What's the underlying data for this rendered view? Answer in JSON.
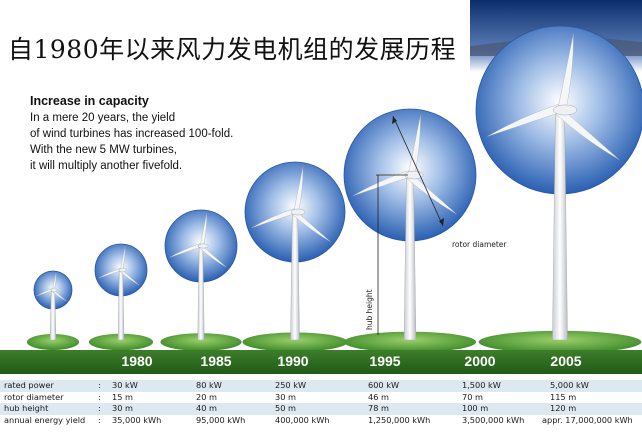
{
  "title": "自1980年以来风力发电机组的发展历程",
  "intro": {
    "heading": "Increase in capacity",
    "lines": [
      "In a mere 20 years, the yield",
      "of wind turbines has increased 100-fold.",
      "With the new 5 MW turbines,",
      "it will multiply another fivefold."
    ]
  },
  "annotations": {
    "rotor_diameter": "rotor diameter",
    "hub_height": "hub height"
  },
  "colors": {
    "rotor_blue": "#2f64b6",
    "ground_green": "#2f6f22",
    "year_bar": "#2a6a1e"
  },
  "years": [
    "1980",
    "1985",
    "1990",
    "1995",
    "2000",
    "2005"
  ],
  "specs": [
    {
      "label": "rated power",
      "values": [
        "30 kW",
        "80 kW",
        "250 kW",
        "600 kW",
        "1,500 kW",
        "5,000 kW"
      ]
    },
    {
      "label": "rotor diameter",
      "values": [
        "15 m",
        "20 m",
        "30 m",
        "46 m",
        "70 m",
        "115 m"
      ]
    },
    {
      "label": "hub height",
      "values": [
        "30 m",
        "40 m",
        "50 m",
        "78 m",
        "100 m",
        "120 m"
      ]
    },
    {
      "label": "annual energy yield",
      "values": [
        "35,000 kWh",
        "95,000 kWh",
        "400,000 kWh",
        "1,250,000 kWh",
        "3,500,000 kWh",
        "appr. 17,000,000 kWh"
      ]
    }
  ]
}
